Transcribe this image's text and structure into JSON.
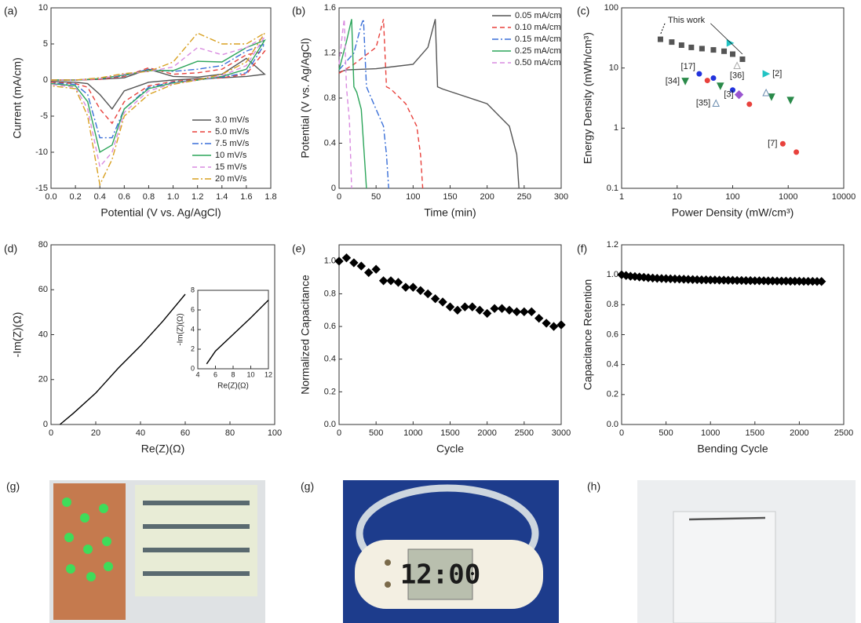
{
  "chart_data": [
    {
      "type": "line",
      "panel": "(a)",
      "xlabel": "Potential (V vs. Ag/AgCl)",
      "ylabel": "Current (mA/cm)",
      "xlim": [
        0,
        1.8
      ],
      "ylim": [
        -15,
        10
      ],
      "xticks": [
        {
          "value": 0,
          "label": "0.0"
        },
        0.2,
        0.4,
        0.6,
        0.8,
        {
          "value": 1,
          "label": "1.0"
        },
        1.2,
        1.4,
        1.6,
        1.8
      ],
      "yticks": [
        -15,
        -10,
        -5,
        0,
        5,
        10
      ],
      "legend": "lower right",
      "x": [
        0,
        0.2,
        0.4,
        0.6,
        0.8,
        1.0,
        1.2,
        1.4,
        1.6,
        1.75,
        1.6,
        1.4,
        1.2,
        1.0,
        0.8,
        0.6,
        0.5,
        0.4,
        0.3,
        0.2,
        0
      ],
      "series": [
        {
          "name": "3.0 mV/s",
          "color": "#555555",
          "dash": "solid",
          "values": [
            0,
            0,
            0.1,
            0.3,
            1.5,
            0.5,
            0.4,
            0.8,
            3,
            0.8,
            0.5,
            0.3,
            0.2,
            0,
            -0.3,
            -1.5,
            -4,
            -2,
            -0.5,
            -0.3,
            -0.2
          ]
        },
        {
          "name": "5.0 mV/s",
          "color": "#e8413c",
          "dash": "dashed",
          "values": [
            0,
            0,
            0.1,
            0.5,
            1.7,
            0.8,
            1.0,
            1.5,
            3.5,
            4,
            0.8,
            0.3,
            0.1,
            -0.2,
            -0.8,
            -3,
            -6,
            -4,
            -1,
            -0.5,
            -0.3
          ]
        },
        {
          "name": "7.5 mV/s",
          "color": "#3a6fd8",
          "dash": "dashdot",
          "values": [
            0,
            0,
            0.2,
            0.6,
            1.5,
            1.2,
            1.5,
            2.0,
            4,
            5,
            1,
            0.4,
            0,
            -0.3,
            -1,
            -4,
            -8,
            -8,
            -2,
            -0.6,
            -0.4
          ]
        },
        {
          "name": "10 mV/s",
          "color": "#2ca55a",
          "dash": "solid",
          "values": [
            0,
            0,
            0.2,
            0.7,
            1.3,
            1.3,
            2.6,
            2.5,
            4.5,
            5.5,
            1.5,
            0.5,
            0,
            -0.4,
            -1.2,
            -4,
            -9,
            -10,
            -3,
            -0.8,
            -0.5
          ]
        },
        {
          "name": "15 mV/s",
          "color": "#d98be0",
          "dash": "dashed",
          "values": [
            0,
            0,
            0.2,
            0.8,
            1.2,
            1.8,
            4.5,
            3.5,
            4.5,
            6,
            2,
            0.6,
            0,
            -0.5,
            -1.5,
            -4.5,
            -10,
            -12,
            -4,
            -1,
            -0.6
          ]
        },
        {
          "name": "20 mV/s",
          "color": "#d8a020",
          "dash": "dashdot",
          "values": [
            0,
            0,
            0.3,
            0.9,
            1.2,
            2.5,
            6.5,
            5,
            5,
            6.5,
            2.5,
            0.8,
            0,
            -0.6,
            -2,
            -5,
            -11,
            -14.5,
            -5,
            -1.2,
            -0.8
          ]
        }
      ]
    },
    {
      "type": "line",
      "panel": "(b)",
      "xlabel": "Time (min)",
      "ylabel": "Potential (V vs. Ag/AgCl)",
      "xlim": [
        0,
        300
      ],
      "ylim": [
        0,
        1.6
      ],
      "xticks": [
        0,
        50,
        100,
        150,
        200,
        250,
        300
      ],
      "yticks": [
        0,
        0.4,
        0.8,
        1.2,
        1.6
      ],
      "legend": "upper right",
      "series": [
        {
          "name": "0.05 mA/cm",
          "color": "#555555",
          "dash": "solid",
          "x": [
            0,
            10,
            50,
            100,
            120,
            130,
            133,
            140,
            200,
            230,
            240,
            243
          ],
          "values": [
            1.03,
            1.05,
            1.06,
            1.1,
            1.25,
            1.5,
            0.9,
            0.88,
            0.75,
            0.55,
            0.3,
            0
          ]
        },
        {
          "name": "0.10 mA/cm",
          "color": "#e8413c",
          "dash": "dashed",
          "x": [
            0,
            20,
            50,
            60,
            64,
            70,
            90,
            105,
            110,
            113
          ],
          "values": [
            1.02,
            1.1,
            1.25,
            1.5,
            0.9,
            0.88,
            0.75,
            0.55,
            0.3,
            0
          ]
        },
        {
          "name": "0.15 mA/cm",
          "color": "#3a6fd8",
          "dash": "dashdot",
          "x": [
            0,
            20,
            30,
            33,
            37,
            50,
            60,
            64,
            67
          ],
          "values": [
            1.05,
            1.2,
            1.45,
            1.5,
            0.9,
            0.7,
            0.55,
            0.3,
            0
          ]
        },
        {
          "name": "0.25 mA/cm",
          "color": "#2ca55a",
          "dash": "solid",
          "x": [
            0,
            10,
            17,
            20,
            24,
            30,
            34,
            37
          ],
          "values": [
            1.05,
            1.3,
            1.5,
            0.9,
            0.85,
            0.7,
            0.3,
            0
          ]
        },
        {
          "name": "0.50 mA/cm",
          "color": "#d98be0",
          "dash": "dashed",
          "x": [
            0,
            5,
            7,
            10,
            14,
            16,
            17
          ],
          "values": [
            1.1,
            1.4,
            1.5,
            0.9,
            0.6,
            0.2,
            0
          ]
        }
      ]
    },
    {
      "type": "scatter",
      "panel": "(c)",
      "xlabel": "Power Density (mW/cm³)",
      "ylabel": "Energy Density (mWh/cm³)",
      "log": true,
      "xlim": [
        1,
        10000
      ],
      "ylim": [
        0.1,
        100
      ],
      "xticks": [
        1,
        10,
        100,
        1000,
        10000
      ],
      "yticks": [
        0.1,
        1,
        10,
        100
      ],
      "annotation": "This work",
      "series": [
        {
          "color": "#555555",
          "marker": "square",
          "x": [
            5,
            8,
            12,
            18,
            28,
            45,
            70,
            100,
            150
          ],
          "values": [
            30,
            27,
            24,
            22,
            21,
            20,
            19,
            17,
            14
          ]
        },
        {
          "color": "#2233dd",
          "marker": "circle",
          "x": [
            25,
            45,
            100
          ],
          "values": [
            8,
            6.8,
            4.3
          ],
          "point_labels": [
            "[17]",
            null,
            null
          ]
        },
        {
          "color": "#e8413c",
          "marker": "circle",
          "x": [
            35,
            200,
            800,
            1400
          ],
          "values": [
            6.2,
            2.5,
            0.55,
            0.4
          ],
          "point_labels": [
            null,
            null,
            "[7]",
            null
          ]
        },
        {
          "color": "#2a8a4a",
          "marker": "tri-down",
          "x": [
            14,
            60,
            500,
            1100
          ],
          "values": [
            6,
            5,
            3.3,
            2.9
          ],
          "point_labels": [
            "[34]",
            null,
            null,
            null
          ]
        },
        {
          "color": "#22c4c4",
          "marker": "tri-right",
          "x": [
            90,
            400
          ],
          "values": [
            26,
            8
          ],
          "point_labels": [
            null,
            "[2]"
          ]
        },
        {
          "color": "#9a55d0",
          "marker": "diamond",
          "x": [
            130
          ],
          "values": [
            3.6
          ],
          "point_labels": [
            "[3]"
          ]
        },
        {
          "color": "#6a8caf",
          "marker": "tri-up-open",
          "x": [
            50,
            400
          ],
          "values": [
            2.6,
            3.9
          ],
          "point_labels": [
            "[35]",
            null
          ]
        },
        {
          "color": "#aaaaaa",
          "marker": "tri-up-open",
          "x": [
            120
          ],
          "values": [
            11
          ],
          "point_labels": [
            "[36]"
          ]
        }
      ]
    },
    {
      "type": "line",
      "panel": "(d)",
      "xlabel": "Re(Z)(Ω)",
      "ylabel": "-Im(Z)(Ω)",
      "xlim": [
        0,
        100
      ],
      "ylim": [
        0,
        80
      ],
      "xticks": [
        0,
        20,
        40,
        60,
        80,
        100
      ],
      "yticks": [
        0,
        20,
        40,
        60,
        80
      ],
      "series": [
        {
          "color": "#000000",
          "dash": "solid",
          "x": [
            4,
            10,
            20,
            30,
            40,
            50,
            60
          ],
          "values": [
            0,
            5,
            14,
            25,
            35,
            46,
            58
          ]
        }
      ]
    },
    {
      "type": "line",
      "xlabel": "Re(Z)(Ω)",
      "ylabel": "-Im(Z)(Ω)",
      "xlim": [
        4,
        12
      ],
      "ylim": [
        0,
        8
      ],
      "xticks": [
        4,
        6,
        8,
        10,
        12
      ],
      "yticks": [
        0,
        2,
        4,
        6,
        8
      ],
      "series": [
        {
          "color": "#000000",
          "dash": "solid",
          "x": [
            5,
            6,
            8,
            10,
            12
          ],
          "values": [
            0.5,
            1.8,
            3.5,
            5.2,
            7
          ]
        }
      ]
    },
    {
      "type": "scatter",
      "panel": "(e)",
      "xlabel": "Cycle",
      "ylabel": "Normalized Capacitance",
      "xlim": [
        0,
        3000
      ],
      "ylim": [
        0,
        1.1
      ],
      "xticks": [
        0,
        500,
        1000,
        1500,
        2000,
        2500,
        3000
      ],
      "yticks": [
        {
          "value": 0,
          "label": "0.0"
        },
        0.2,
        0.4,
        0.6,
        0.8,
        {
          "value": 1,
          "label": "1.0"
        }
      ],
      "x": [
        0,
        100,
        200,
        300,
        400,
        500,
        600,
        700,
        800,
        900,
        1000,
        1100,
        1200,
        1300,
        1400,
        1500,
        1600,
        1700,
        1800,
        1900,
        2000,
        2100,
        2200,
        2300,
        2400,
        2500,
        2600,
        2700,
        2800,
        2900,
        3000
      ],
      "series": [
        {
          "color": "#000000",
          "marker": "diamond",
          "values": [
            1.0,
            1.02,
            0.99,
            0.97,
            0.93,
            0.95,
            0.88,
            0.88,
            0.87,
            0.84,
            0.84,
            0.82,
            0.8,
            0.77,
            0.75,
            0.72,
            0.7,
            0.72,
            0.72,
            0.7,
            0.68,
            0.71,
            0.71,
            0.7,
            0.69,
            0.69,
            0.69,
            0.65,
            0.62,
            0.6,
            0.61
          ]
        }
      ]
    },
    {
      "type": "scatter",
      "panel": "(f)",
      "xlabel": "Bending Cycle",
      "ylabel": "Capacitance Retention",
      "xlim": [
        0,
        2500
      ],
      "ylim": [
        0,
        1.2
      ],
      "xticks": [
        0,
        500,
        1000,
        1500,
        2000,
        2500
      ],
      "yticks": [
        {
          "value": 0,
          "label": "0.0"
        },
        0.2,
        0.4,
        0.6,
        0.8,
        {
          "value": 1,
          "label": "1.0"
        },
        1.2
      ],
      "x": [
        0,
        50,
        100,
        150,
        200,
        250,
        300,
        350,
        400,
        450,
        500,
        550,
        600,
        650,
        700,
        750,
        800,
        850,
        900,
        950,
        1000,
        1050,
        1100,
        1150,
        1200,
        1250,
        1300,
        1350,
        1400,
        1450,
        1500,
        1550,
        1600,
        1650,
        1700,
        1750,
        1800,
        1850,
        1900,
        1950,
        2000,
        2050,
        2100,
        2150,
        2200,
        2250
      ],
      "series": [
        {
          "color": "#000000",
          "marker": "diamond",
          "values": [
            1.0,
            0.995,
            0.99,
            0.988,
            0.985,
            0.983,
            0.98,
            0.978,
            0.976,
            0.975,
            0.974,
            0.973,
            0.972,
            0.971,
            0.97,
            0.969,
            0.968,
            0.967,
            0.966,
            0.966,
            0.965,
            0.965,
            0.964,
            0.964,
            0.963,
            0.963,
            0.962,
            0.962,
            0.961,
            0.961,
            0.96,
            0.96,
            0.96,
            0.959,
            0.959,
            0.958,
            0.958,
            0.958,
            0.957,
            0.957,
            0.957,
            0.956,
            0.956,
            0.956,
            0.955,
            0.955
          ]
        }
      ]
    }
  ],
  "photos": [
    {
      "label": "(g)"
    },
    {
      "label": "(g)",
      "display": "12:00"
    },
    {
      "label": "(h)"
    }
  ]
}
